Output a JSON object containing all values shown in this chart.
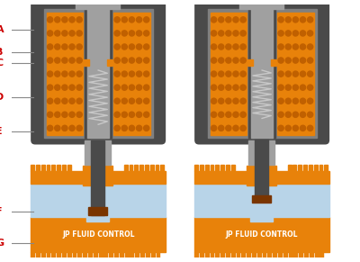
{
  "bg_color": "#ffffff",
  "orange": "#E8820A",
  "dark_gray": "#4A4A4A",
  "light_gray": "#A0A0A0",
  "mid_gray": "#808080",
  "light_blue": "#B8D4E8",
  "dark_orange": "#7A3500",
  "spring_color": "#C8C8C8",
  "label_color": "#CC0000",
  "line_color": "#888888",
  "dot_color": "#C06000",
  "jp_text": "JP FLUID CONTROL",
  "title_fontsize": 5.5,
  "label_fontsize": 8
}
